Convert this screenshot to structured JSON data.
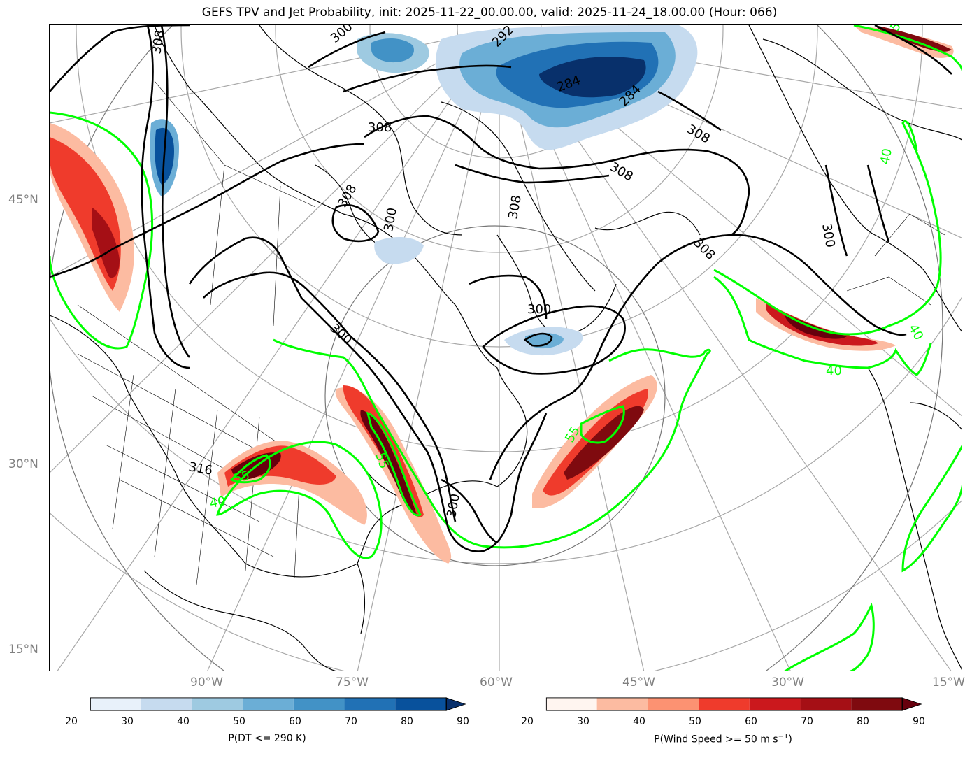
{
  "title": "GEFS TPV and Jet Probability, init: 2025-11-22_00.00.00, valid: 2025-11-24_18.00.00 (Hour: 066)",
  "lat_labels": [
    "45°N",
    "30°N",
    "15°N"
  ],
  "lon_labels": [
    "90°W",
    "75°W",
    "60°W",
    "45°W",
    "30°W",
    "15°W"
  ],
  "contour_labels": {
    "theta": [
      "308",
      "300",
      "292",
      "284",
      "284",
      "308",
      "308",
      "308",
      "308",
      "300",
      "300",
      "300",
      "316",
      "308",
      "300",
      "300",
      "308"
    ],
    "jet": [
      "55",
      "55",
      "55",
      "55",
      "40",
      "40",
      "40",
      "40"
    ]
  },
  "colorbars": {
    "blue": {
      "label": "P(DT <= 290 K)",
      "ticks": [
        "20",
        "30",
        "40",
        "50",
        "60",
        "70",
        "80",
        "90"
      ],
      "colors": [
        "#e8f1fa",
        "#c6dbef",
        "#9ecae1",
        "#6baed6",
        "#4292c6",
        "#2171b5",
        "#08519c"
      ],
      "extend_color": "#08306b"
    },
    "red": {
      "label_main": "P(Wind Speed >= 50 m s",
      "label_sup": "−1",
      "label_end": ")",
      "ticks": [
        "20",
        "30",
        "40",
        "50",
        "60",
        "70",
        "80",
        "90"
      ],
      "colors": [
        "#fff5f0",
        "#fcbba1",
        "#fc9272",
        "#ef3b2c",
        "#cb181d",
        "#a50f15",
        "#7f0a0f"
      ],
      "extend_color": "#67000d"
    }
  },
  "style": {
    "jet_contour_color": "#00ff00",
    "theta_contour_color": "#000000",
    "grid_color": "#a8a8a8"
  }
}
